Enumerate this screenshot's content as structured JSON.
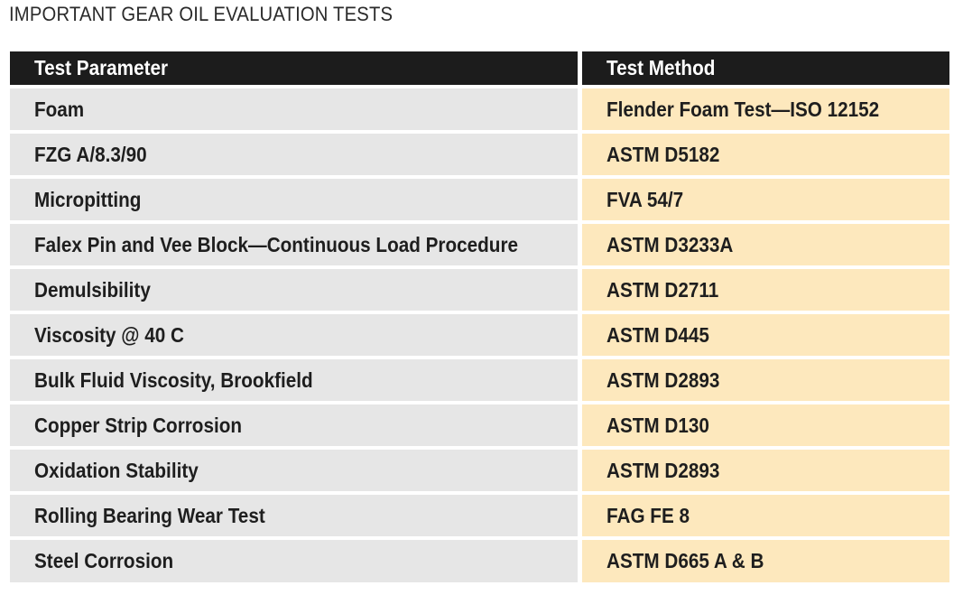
{
  "title": "IMPORTANT GEAR OIL EVALUATION TESTS",
  "table": {
    "headers": {
      "parameter": "Test Parameter",
      "method": "Test Method"
    },
    "rows": [
      {
        "parameter": "Foam",
        "method": "Flender Foam Test—ISO 12152"
      },
      {
        "parameter": "FZG A/8.3/90",
        "method": "ASTM D5182"
      },
      {
        "parameter": "Micropitting",
        "method": "FVA 54/7"
      },
      {
        "parameter": "Falex Pin and Vee Block—Continuous Load Procedure",
        "method": "ASTM D3233A"
      },
      {
        "parameter": "Demulsibility",
        "method": "ASTM D2711"
      },
      {
        "parameter": "Viscosity @ 40 C",
        "method": "ASTM D445"
      },
      {
        "parameter": "Bulk Fluid Viscosity, Brookfield",
        "method": "ASTM D2893"
      },
      {
        "parameter": "Copper Strip Corrosion",
        "method": "ASTM D130"
      },
      {
        "parameter": "Oxidation Stability",
        "method": "ASTM D2893"
      },
      {
        "parameter": "Rolling Bearing Wear Test",
        "method": "FAG FE 8"
      },
      {
        "parameter": "Steel Corrosion",
        "method": "ASTM D665 A & B"
      }
    ]
  },
  "colors": {
    "header_bg": "#1c1c1c",
    "header_text": "#ffffff",
    "parameter_bg": "#e6e6e6",
    "method_bg": "#fde8bd",
    "text": "#1e1e1e"
  }
}
